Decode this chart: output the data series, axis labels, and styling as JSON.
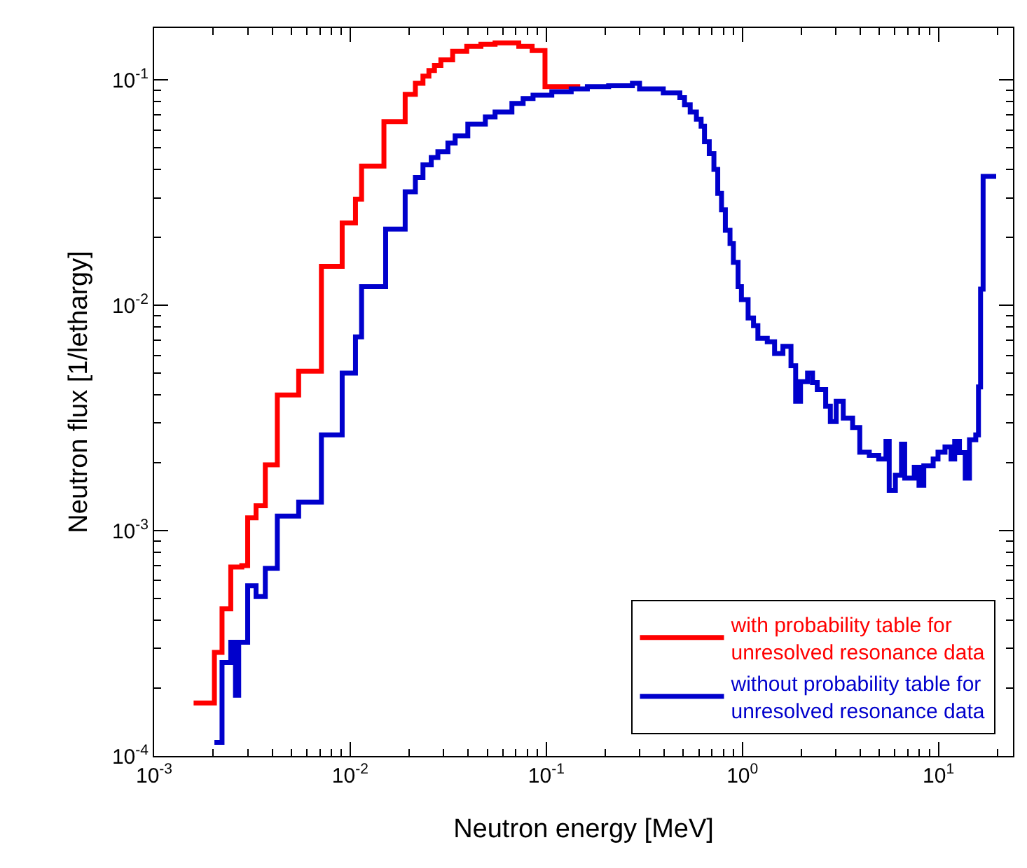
{
  "chart_data": {
    "type": "step",
    "xlabel": "Neutron energy [MeV]",
    "ylabel": "Neutron flux [1/lethargy]",
    "log": "xy",
    "legend": "bottom right",
    "marker": "none",
    "line_style": "solid",
    "xlim": [
      0.001,
      24
    ],
    "ylim": [
      0.0001,
      0.17
    ],
    "xticks": [
      {
        "value": 0.001,
        "label": "10$^{-3}$"
      },
      {
        "value": 0.01,
        "label": "10$^{-2}$"
      },
      {
        "value": 0.1,
        "label": "10$^{-1}$"
      },
      {
        "value": 1,
        "label": "10$^{0}$"
      },
      {
        "value": 10,
        "label": "10$^{1}$"
      }
    ],
    "yticks": [
      {
        "value": 0.0001,
        "label": "10$^{-4}$"
      },
      {
        "value": 0.001,
        "label": "10$^{-3}$"
      },
      {
        "value": 0.01,
        "label": "10$^{-2}$"
      },
      {
        "value": 0.1,
        "label": "10$^{-1}$"
      }
    ],
    "series": [
      {
        "name": "with probability table for\nunresolved resonance data",
        "color": "#ff0000",
        "x": [
          0.00159,
          0.00203,
          0.00222,
          0.00246,
          0.0028,
          0.003,
          0.00331,
          0.00369,
          0.00425,
          0.00546,
          0.00713,
          0.0091,
          0.01064,
          0.01143,
          0.01486,
          0.01907,
          0.0215,
          0.0235,
          0.0252,
          0.0269,
          0.029,
          0.0333,
          0.0393,
          0.0464,
          0.0548,
          0.0724,
          0.0847,
          0.0985,
          0.149
        ],
        "values": [
          0.000172,
          0.000288,
          0.00045,
          0.00069,
          0.0007,
          0.00114,
          0.00129,
          0.00196,
          0.004,
          0.0051,
          0.0149,
          0.0232,
          0.0296,
          0.0415,
          0.0653,
          0.0863,
          0.0966,
          0.104,
          0.11,
          0.116,
          0.1228,
          0.134,
          0.141,
          0.144,
          0.146,
          0.141,
          0.135,
          0.0934,
          0.0934
        ]
      },
      {
        "name": "without probability table for\nunresolved resonance data",
        "color": "#0000cc",
        "x": [
          0.00203,
          0.00222,
          0.00246,
          0.0026,
          0.0027,
          0.003,
          0.00331,
          0.00369,
          0.00425,
          0.00546,
          0.00713,
          0.0091,
          0.01064,
          0.01143,
          0.01516,
          0.01907,
          0.0215,
          0.0235,
          0.0259,
          0.028,
          0.0315,
          0.0343,
          0.0398,
          0.0489,
          0.0548,
          0.0668,
          0.0762,
          0.0856,
          0.1067,
          0.134,
          0.162,
          0.208,
          0.275,
          0.299,
          0.395,
          0.48,
          0.507,
          0.542,
          0.583,
          0.616,
          0.641,
          0.678,
          0.716,
          0.749,
          0.783,
          0.819,
          0.865,
          0.9,
          0.951,
          0.989,
          1.07,
          1.14,
          1.2,
          1.34,
          1.46,
          1.61,
          1.77,
          1.87,
          1.98,
          2.15,
          2.28,
          2.41,
          2.66,
          2.81,
          3.01,
          3.27,
          3.65,
          3.97,
          4.44,
          4.96,
          5.4,
          5.61,
          6.03,
          6.48,
          6.73,
          7.53,
          7.96,
          8.42,
          9.4,
          9.95,
          10.8,
          11.6,
          12.1,
          12.8,
          13.7,
          14.4,
          15.5,
          16.0,
          16.4,
          16.9,
          19.7
        ],
        "values": [
          0.000115,
          0.00026,
          0.00032,
          0.000186,
          0.00032,
          0.00057,
          0.00051,
          0.00068,
          0.00116,
          0.00134,
          0.00266,
          0.005,
          0.00724,
          0.0121,
          0.0218,
          0.0319,
          0.0369,
          0.042,
          0.0453,
          0.048,
          0.0525,
          0.0565,
          0.0637,
          0.0686,
          0.0721,
          0.0787,
          0.0827,
          0.0855,
          0.0886,
          0.0912,
          0.0934,
          0.0943,
          0.0966,
          0.0912,
          0.0876,
          0.0835,
          0.0776,
          0.0721,
          0.067,
          0.0623,
          0.0532,
          0.0471,
          0.0401,
          0.0314,
          0.0265,
          0.0215,
          0.0188,
          0.0155,
          0.0121,
          0.0106,
          0.00879,
          0.00812,
          0.00714,
          0.00689,
          0.00611,
          0.00658,
          0.00539,
          0.00375,
          0.00458,
          0.005,
          0.00454,
          0.00423,
          0.00357,
          0.00305,
          0.00375,
          0.00316,
          0.00287,
          0.00223,
          0.00216,
          0.00208,
          0.00249,
          0.00151,
          0.00176,
          0.00242,
          0.00171,
          0.00191,
          0.00159,
          0.00194,
          0.00208,
          0.00223,
          0.00235,
          0.00208,
          0.00249,
          0.00222,
          0.00171,
          0.00253,
          0.00266,
          0.00434,
          0.0118,
          0.0373,
          0.0373
        ]
      }
    ]
  }
}
